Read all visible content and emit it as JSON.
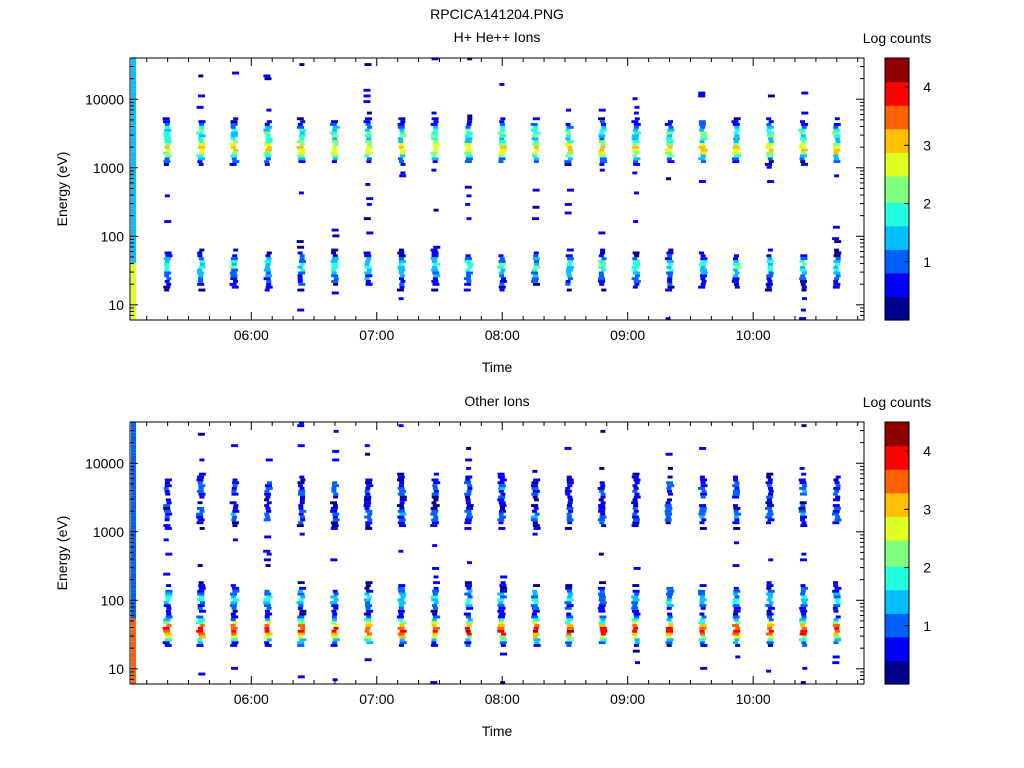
{
  "figure": {
    "title": "RPCICA141204.PNG"
  },
  "colors": {
    "colormap": [
      "#00008f",
      "#0000ff",
      "#0060ff",
      "#00bfff",
      "#20ffdf",
      "#80ff80",
      "#dfff20",
      "#ffbf00",
      "#ff6000",
      "#ff0000",
      "#8f0000"
    ]
  },
  "chart_data": [
    {
      "type": "heatmap",
      "title": "H+ He++ Ions",
      "xlabel": "Time",
      "ylabel": "Energy (eV)",
      "yscale": "log",
      "xlim": [
        "05:02",
        "10:53"
      ],
      "ylim": [
        6,
        40000
      ],
      "xticks": [
        "06:00",
        "07:00",
        "08:00",
        "09:00",
        "10:00"
      ],
      "yticks": [
        "10",
        "100",
        "1000",
        "10000"
      ],
      "colorbar": {
        "label": "Log counts",
        "range": [
          0,
          4.5
        ],
        "ticks": [
          "1",
          "2",
          "3",
          "4"
        ]
      },
      "sweep_times": [
        "05:20",
        "05:36",
        "05:52",
        "06:08",
        "06:24",
        "06:40",
        "06:56",
        "07:12",
        "07:28",
        "07:44",
        "08:00",
        "08:16",
        "08:32",
        "08:48",
        "09:04",
        "09:20",
        "09:36",
        "09:52",
        "10:08",
        "10:24",
        "10:40",
        "10:53"
      ],
      "bands": [
        {
          "energy_ev": 1800,
          "mean_log_counts": 2.9
        },
        {
          "energy_ev": 3000,
          "mean_log_counts": 1.9
        },
        {
          "energy_ev": 35,
          "mean_log_counts": 1.8
        },
        {
          "energy_ev": 25,
          "mean_log_counts": 1.0
        }
      ]
    },
    {
      "type": "heatmap",
      "title": "Other Ions",
      "xlabel": "Time",
      "ylabel": "Energy (eV)",
      "yscale": "log",
      "xlim": [
        "05:02",
        "10:53"
      ],
      "ylim": [
        6,
        40000
      ],
      "xticks": [
        "06:00",
        "07:00",
        "08:00",
        "09:00",
        "10:00"
      ],
      "yticks": [
        "10",
        "100",
        "1000",
        "10000"
      ],
      "colorbar": {
        "label": "Log counts",
        "range": [
          0,
          4.5
        ],
        "ticks": [
          "1",
          "2",
          "3",
          "4"
        ]
      },
      "sweep_times": [
        "05:20",
        "05:36",
        "05:52",
        "06:08",
        "06:24",
        "06:40",
        "06:56",
        "07:12",
        "07:28",
        "07:44",
        "08:00",
        "08:16",
        "08:32",
        "08:48",
        "09:04",
        "09:20",
        "09:36",
        "09:52",
        "10:08",
        "10:24",
        "10:40",
        "10:53"
      ],
      "bands": [
        {
          "energy_ev": 35,
          "mean_log_counts": 3.9
        },
        {
          "energy_ev": 100,
          "mean_log_counts": 1.5
        },
        {
          "energy_ev": 1700,
          "mean_log_counts": 1.0
        },
        {
          "energy_ev": 4000,
          "mean_log_counts": 0.9
        }
      ]
    }
  ]
}
